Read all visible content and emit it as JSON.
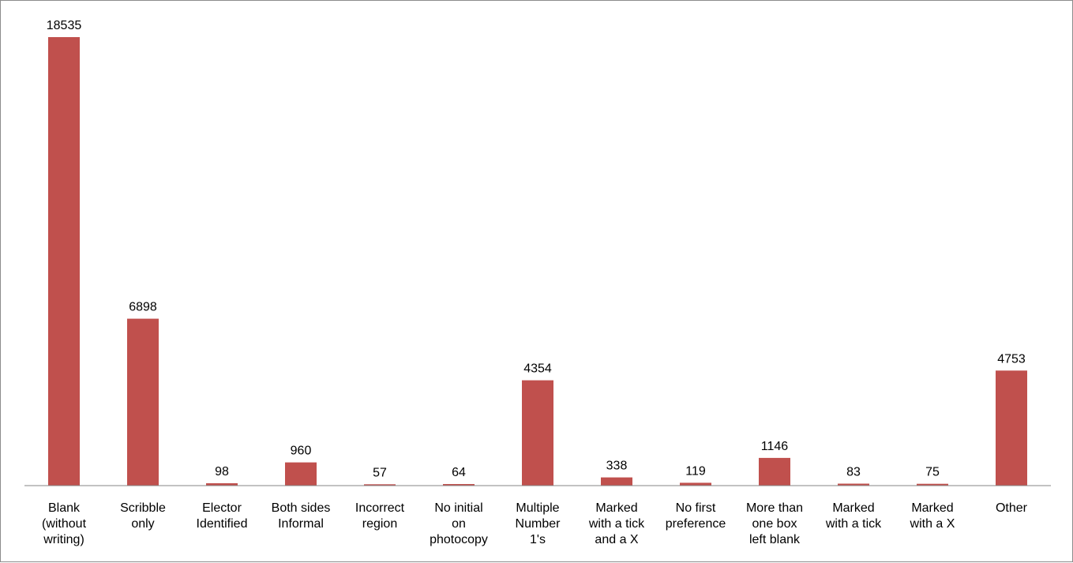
{
  "chart_data": {
    "type": "bar",
    "categories": [
      "Blank (without writing)",
      "Scribble only",
      "Elector Identified",
      "Both sides Informal",
      "Incorrect region",
      "No initial on photocopy",
      "Multiple Number 1's",
      "Marked with a tick and a X",
      "No first preference",
      "More than one box left blank",
      "Marked with a tick",
      "Marked with a X",
      "Other"
    ],
    "category_lines": [
      [
        "Blank",
        "(without",
        "writing)"
      ],
      [
        "Scribble",
        "only"
      ],
      [
        "Elector",
        "Identified"
      ],
      [
        "Both sides",
        "Informal"
      ],
      [
        "Incorrect",
        "region"
      ],
      [
        "No initial",
        "on",
        "photocopy"
      ],
      [
        "Multiple",
        "Number",
        "1's"
      ],
      [
        "Marked",
        "with a tick",
        "and a X"
      ],
      [
        "No first",
        "preference"
      ],
      [
        "More than",
        "one box",
        "left blank"
      ],
      [
        "Marked",
        "with a tick"
      ],
      [
        "Marked",
        "with a X"
      ],
      [
        "Other"
      ]
    ],
    "values": [
      18535,
      6898,
      98,
      960,
      57,
      64,
      4354,
      338,
      119,
      1146,
      83,
      75,
      4753
    ],
    "data_labels": [
      "18535",
      "6898",
      "98",
      "960",
      "57",
      "64",
      "4354",
      "338",
      "119",
      "1146",
      "83",
      "75",
      "4753"
    ],
    "title": "",
    "xlabel": "",
    "ylabel": "",
    "ylim": [
      0,
      18535
    ],
    "grid": false,
    "legend": "none",
    "bar_color": "#c0504d",
    "axis_color": "#868686"
  }
}
